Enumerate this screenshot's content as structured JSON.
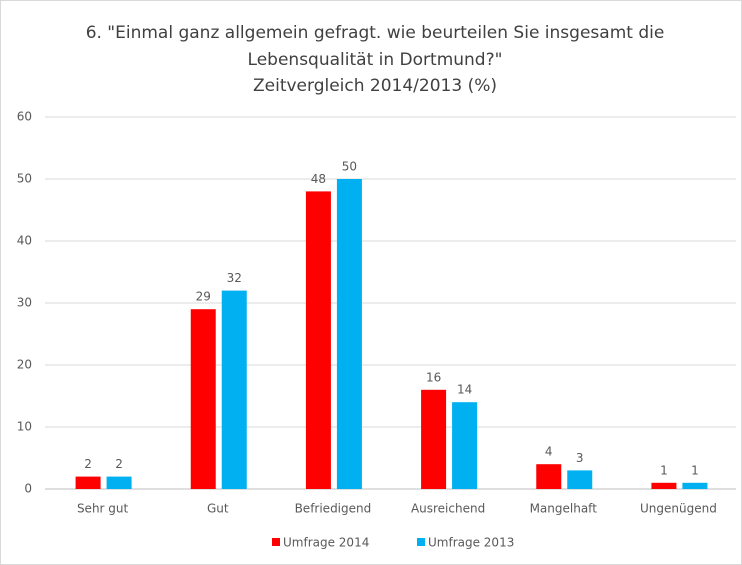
{
  "chart_data": {
    "type": "bar",
    "title": [
      "6. \"Einmal ganz allgemein gefragt. wie beurteilen Sie insgesamt die",
      "Lebensqualität in Dortmund?\"",
      "Zeitvergleich 2014/2013 (%)"
    ],
    "categories": [
      "Sehr gut",
      "Gut",
      "Befriedigend",
      "Ausreichend",
      "Mangelhaft",
      "Ungenügend"
    ],
    "series": [
      {
        "name": "Umfrage 2014",
        "color": "#ff0000",
        "values": [
          2,
          29,
          48,
          16,
          4,
          1
        ]
      },
      {
        "name": "Umfrage 2013",
        "color": "#00b0f0",
        "values": [
          2,
          32,
          50,
          14,
          3,
          1
        ]
      }
    ],
    "ylim": [
      0,
      60
    ],
    "yticks": [
      0,
      10,
      20,
      30,
      40,
      50,
      60
    ],
    "grid": true,
    "legend": "bottom"
  }
}
